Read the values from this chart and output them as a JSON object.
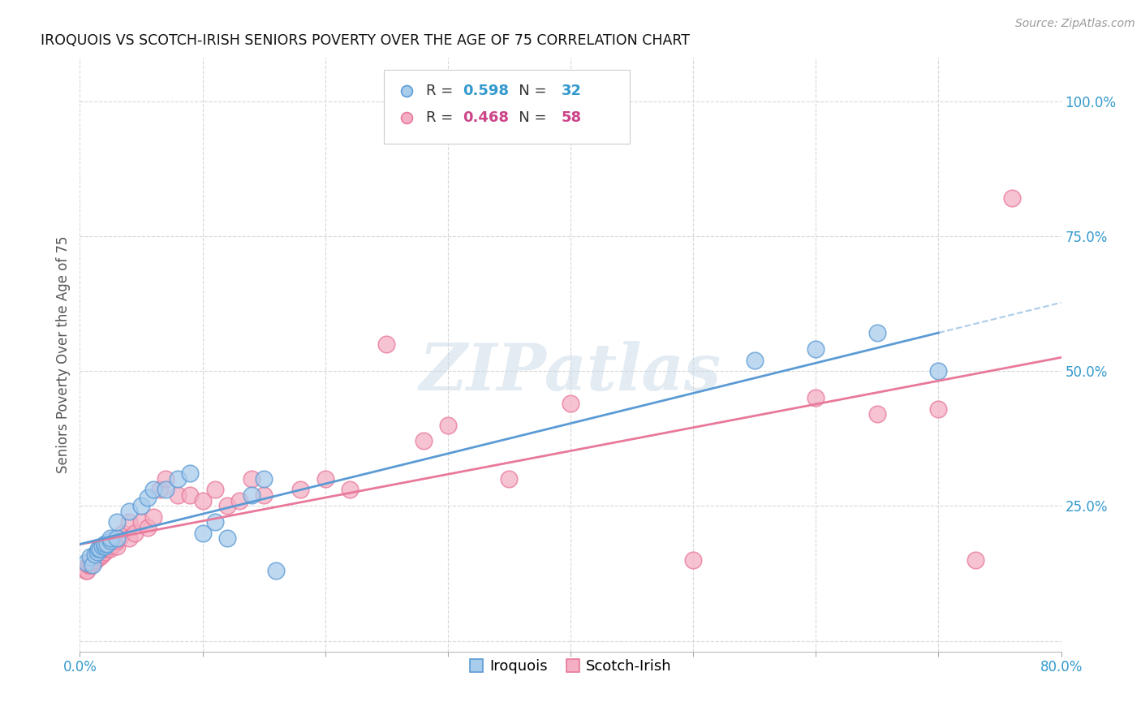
{
  "title": "IROQUOIS VS SCOTCH-IRISH SENIORS POVERTY OVER THE AGE OF 75 CORRELATION CHART",
  "source": "Source: ZipAtlas.com",
  "ylabel": "Seniors Poverty Over the Age of 75",
  "xlim": [
    0.0,
    0.8
  ],
  "ylim": [
    -0.02,
    1.08
  ],
  "xticks": [
    0.0,
    0.1,
    0.2,
    0.3,
    0.4,
    0.5,
    0.6,
    0.7,
    0.8
  ],
  "xticklabels": [
    "0.0%",
    "",
    "",
    "",
    "",
    "",
    "",
    "",
    "80.0%"
  ],
  "ytick_positions": [
    0.0,
    0.25,
    0.5,
    0.75,
    1.0
  ],
  "yticklabels": [
    "",
    "25.0%",
    "50.0%",
    "75.0%",
    "100.0%"
  ],
  "iroquois_R": 0.598,
  "iroquois_N": 32,
  "scotchirish_R": 0.468,
  "scotchirish_N": 58,
  "blue_line_color": "#5b9bd5",
  "pink_line_color": "#e8799a",
  "blue_marker_face": "#a8ccec",
  "blue_marker_edge": "#5b9bd5",
  "pink_marker_face": "#f4afc4",
  "pink_marker_edge": "#e8799a",
  "iroquois_x": [
    0.005,
    0.008,
    0.01,
    0.012,
    0.014,
    0.015,
    0.016,
    0.018,
    0.02,
    0.02,
    0.022,
    0.025,
    0.025,
    0.03,
    0.03,
    0.04,
    0.05,
    0.055,
    0.06,
    0.07,
    0.08,
    0.09,
    0.1,
    0.11,
    0.12,
    0.14,
    0.15,
    0.16,
    0.55,
    0.6,
    0.65,
    0.7
  ],
  "iroquois_y": [
    0.145,
    0.155,
    0.14,
    0.16,
    0.165,
    0.17,
    0.17,
    0.175,
    0.175,
    0.18,
    0.18,
    0.185,
    0.19,
    0.19,
    0.22,
    0.24,
    0.25,
    0.265,
    0.28,
    0.28,
    0.3,
    0.31,
    0.2,
    0.22,
    0.19,
    0.27,
    0.3,
    0.13,
    0.52,
    0.54,
    0.57,
    0.5
  ],
  "scotchirish_x": [
    0.003,
    0.005,
    0.006,
    0.007,
    0.008,
    0.009,
    0.01,
    0.01,
    0.011,
    0.012,
    0.013,
    0.014,
    0.015,
    0.015,
    0.016,
    0.017,
    0.018,
    0.02,
    0.02,
    0.022,
    0.023,
    0.025,
    0.025,
    0.028,
    0.03,
    0.03,
    0.032,
    0.035,
    0.04,
    0.04,
    0.045,
    0.05,
    0.055,
    0.06,
    0.065,
    0.07,
    0.08,
    0.09,
    0.1,
    0.11,
    0.12,
    0.13,
    0.14,
    0.15,
    0.18,
    0.2,
    0.22,
    0.25,
    0.28,
    0.3,
    0.35,
    0.4,
    0.5,
    0.6,
    0.65,
    0.7,
    0.73,
    0.76
  ],
  "scotchirish_y": [
    0.135,
    0.13,
    0.13,
    0.14,
    0.14,
    0.14,
    0.145,
    0.15,
    0.145,
    0.15,
    0.15,
    0.155,
    0.155,
    0.16,
    0.155,
    0.16,
    0.16,
    0.165,
    0.17,
    0.17,
    0.175,
    0.17,
    0.175,
    0.18,
    0.175,
    0.185,
    0.19,
    0.2,
    0.19,
    0.22,
    0.2,
    0.22,
    0.21,
    0.23,
    0.28,
    0.3,
    0.27,
    0.27,
    0.26,
    0.28,
    0.25,
    0.26,
    0.3,
    0.27,
    0.28,
    0.3,
    0.28,
    0.55,
    0.37,
    0.4,
    0.3,
    0.44,
    0.15,
    0.45,
    0.42,
    0.43,
    0.15,
    0.82
  ],
  "watermark": "ZIPatlas",
  "background_color": "#ffffff",
  "grid_color": "#d8d8d8"
}
